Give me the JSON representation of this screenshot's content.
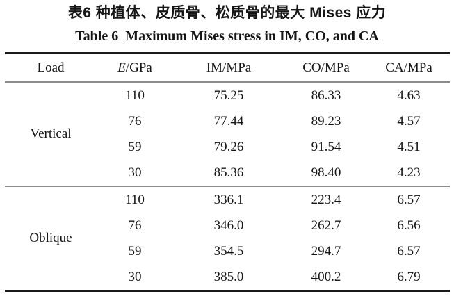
{
  "title_cn": "表6 种植体、皮质骨、松质骨的最大 Mises 应力",
  "title_en": "Table 6  Maximum Mises stress in IM, CO, and CA",
  "table": {
    "headers": {
      "load": "Load",
      "e_symbol": "E",
      "e_unit": "/GPa",
      "im": "IM/MPa",
      "co": "CO/MPa",
      "ca": "CA/MPa"
    },
    "groups": [
      {
        "load": "Vertical",
        "rows": [
          [
            "110",
            "75.25",
            "86.33",
            "4.63"
          ],
          [
            "76",
            "77.44",
            "89.23",
            "4.57"
          ],
          [
            "59",
            "79.26",
            "91.54",
            "4.51"
          ],
          [
            "30",
            "85.36",
            "98.40",
            "4.23"
          ]
        ]
      },
      {
        "load": "Oblique",
        "rows": [
          [
            "110",
            "336.1",
            "223.4",
            "6.57"
          ],
          [
            "76",
            "346.0",
            "262.7",
            "6.56"
          ],
          [
            "59",
            "354.5",
            "294.7",
            "6.57"
          ],
          [
            "30",
            "385.0",
            "400.2",
            "6.79"
          ]
        ]
      }
    ]
  },
  "colors": {
    "text": "#151515",
    "rule_heavy": "#1a1a1a",
    "rule_light": "#8d8d8d"
  }
}
